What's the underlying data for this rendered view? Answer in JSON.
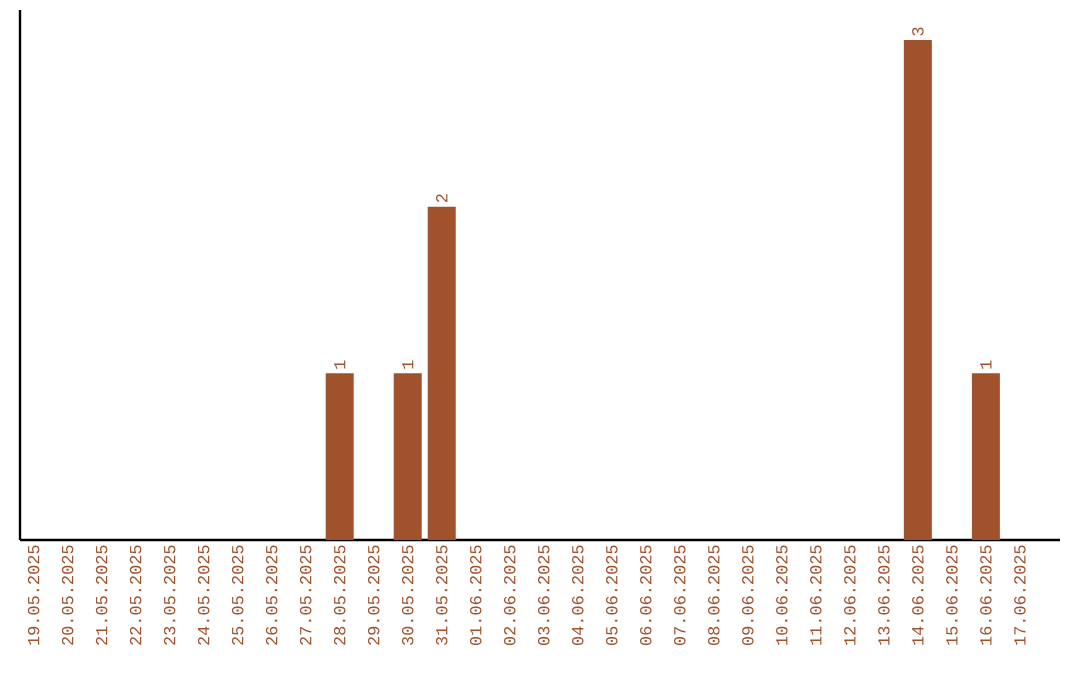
{
  "chart_data": {
    "type": "bar",
    "categories": [
      "19.05.2025",
      "20.05.2025",
      "21.05.2025",
      "22.05.2025",
      "23.05.2025",
      "24.05.2025",
      "25.05.2025",
      "26.05.2025",
      "27.05.2025",
      "28.05.2025",
      "29.05.2025",
      "30.05.2025",
      "31.05.2025",
      "01.06.2025",
      "02.06.2025",
      "03.06.2025",
      "04.06.2025",
      "05.06.2025",
      "06.06.2025",
      "07.06.2025",
      "08.06.2025",
      "09.06.2025",
      "10.06.2025",
      "11.06.2025",
      "12.06.2025",
      "13.06.2025",
      "14.06.2025",
      "15.06.2025",
      "16.06.2025",
      "17.06.2025"
    ],
    "values": [
      0,
      0,
      0,
      0,
      0,
      0,
      0,
      0,
      0,
      1,
      0,
      1,
      2,
      0,
      0,
      0,
      0,
      0,
      0,
      0,
      0,
      0,
      0,
      0,
      0,
      0,
      3,
      0,
      1,
      0
    ],
    "value_labels": [
      null,
      null,
      null,
      null,
      null,
      null,
      null,
      null,
      null,
      "1",
      null,
      "1",
      "2",
      null,
      null,
      null,
      null,
      null,
      null,
      null,
      null,
      null,
      null,
      null,
      null,
      null,
      "3",
      null,
      "1",
      null
    ],
    "color": "#a0522d",
    "grid": false,
    "tick_labels": "x"
  }
}
